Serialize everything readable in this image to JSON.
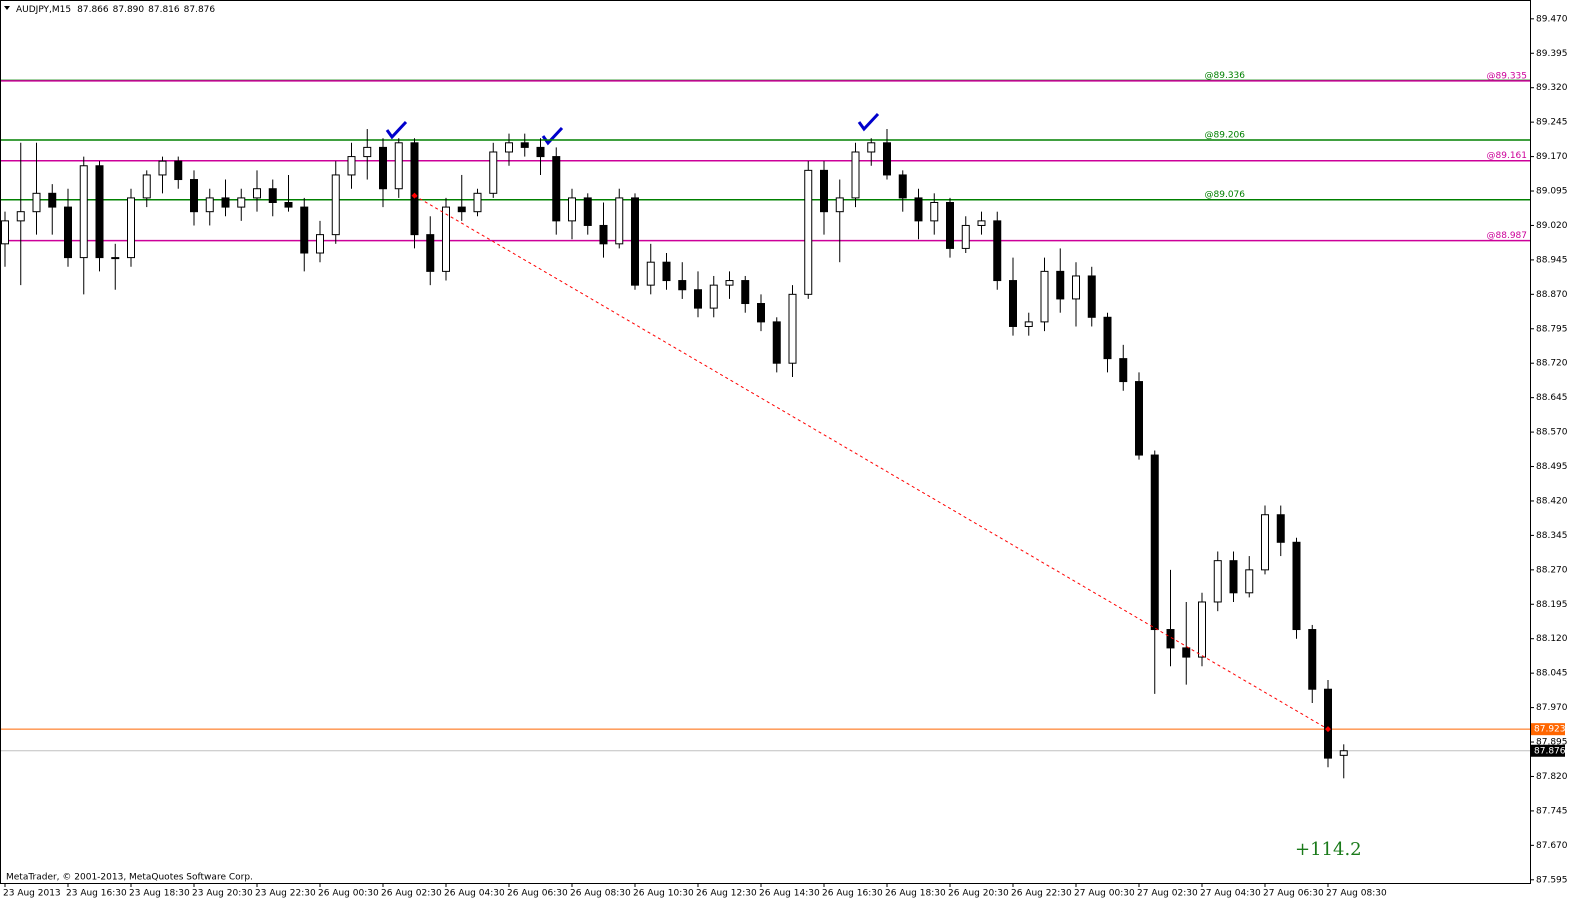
{
  "chart_data": {
    "type": "candlestick",
    "header": {
      "symbol": "AUDJPY,M15",
      "ohlc": [
        "87.866",
        "87.890",
        "87.816",
        "87.876"
      ]
    },
    "footer": "MetaTrader, © 2001-2013, MetaQuotes Software Corp.",
    "annotation": {
      "text": "+114.2",
      "color": "#1a7a1a"
    },
    "categories": [
      "23 Aug 2013",
      null,
      null,
      null,
      "23 Aug 16:30",
      null,
      null,
      null,
      "23 Aug 18:30",
      null,
      null,
      null,
      "23 Aug 20:30",
      null,
      null,
      null,
      "23 Aug 22:30",
      null,
      null,
      null,
      "26 Aug 00:30",
      null,
      null,
      null,
      "26 Aug 02:30",
      null,
      null,
      null,
      "26 Aug 04:30",
      null,
      null,
      null,
      "26 Aug 06:30",
      null,
      null,
      null,
      "26 Aug 08:30",
      null,
      null,
      null,
      "26 Aug 10:30",
      null,
      null,
      null,
      "26 Aug 12:30",
      null,
      null,
      null,
      "26 Aug 14:30",
      null,
      null,
      null,
      "26 Aug 16:30",
      null,
      null,
      null,
      "26 Aug 18:30",
      null,
      null,
      null,
      "26 Aug 20:30",
      null,
      null,
      null,
      "26 Aug 22:30",
      null,
      null,
      null,
      "27 Aug 00:30",
      null,
      null,
      null,
      "27 Aug 02:30",
      null,
      null,
      null,
      "27 Aug 04:30",
      null,
      null,
      null,
      "27 Aug 06:30",
      null,
      null,
      null,
      "27 Aug 08:30",
      null
    ],
    "open": [
      88.98,
      89.03,
      89.05,
      89.09,
      89.06,
      88.95,
      89.15,
      88.95,
      88.95,
      89.08,
      89.13,
      89.16,
      89.12,
      89.05,
      89.08,
      89.06,
      89.08,
      89.1,
      89.07,
      89.06,
      88.96,
      89.0,
      89.13,
      89.17,
      89.19,
      89.1,
      89.2,
      89.0,
      88.92,
      89.06,
      89.05,
      89.09,
      89.18,
      89.2,
      89.19,
      89.17,
      89.03,
      89.08,
      89.02,
      88.98,
      89.08,
      88.89,
      88.94,
      88.9,
      88.88,
      88.84,
      88.89,
      88.9,
      88.85,
      88.81,
      88.72,
      88.87,
      89.14,
      89.05,
      89.08,
      89.18,
      89.2,
      89.13,
      89.08,
      89.03,
      89.07,
      88.97,
      89.02,
      89.03,
      88.9,
      88.8,
      88.81,
      88.92,
      88.86,
      88.91,
      88.82,
      88.73,
      88.68,
      88.52,
      88.14,
      88.1,
      88.08,
      88.2,
      88.29,
      88.22,
      88.27,
      88.39,
      88.33,
      88.14,
      88.01,
      87.866
    ],
    "high": [
      89.05,
      89.2,
      89.2,
      89.11,
      89.1,
      89.17,
      89.16,
      88.98,
      89.1,
      89.14,
      89.17,
      89.17,
      89.14,
      89.1,
      89.12,
      89.1,
      89.14,
      89.12,
      89.13,
      89.08,
      89.03,
      89.16,
      89.2,
      89.23,
      89.21,
      89.21,
      89.21,
      89.04,
      89.08,
      89.13,
      89.1,
      89.2,
      89.22,
      89.22,
      89.21,
      89.19,
      89.1,
      89.09,
      89.07,
      89.1,
      89.09,
      88.98,
      88.96,
      88.94,
      88.92,
      88.91,
      88.92,
      88.91,
      88.87,
      88.82,
      88.89,
      89.16,
      89.16,
      89.12,
      89.2,
      89.21,
      89.23,
      89.14,
      89.1,
      89.09,
      89.08,
      89.04,
      89.05,
      89.05,
      88.95,
      88.83,
      88.95,
      88.97,
      88.94,
      88.93,
      88.83,
      88.76,
      88.7,
      88.53,
      88.27,
      88.2,
      88.22,
      88.31,
      88.31,
      88.3,
      88.41,
      88.41,
      88.34,
      88.15,
      88.03,
      87.89
    ],
    "low": [
      88.93,
      88.89,
      89.0,
      89.0,
      88.93,
      88.87,
      88.92,
      88.88,
      88.93,
      89.06,
      89.09,
      89.1,
      89.02,
      89.02,
      89.04,
      89.03,
      89.05,
      89.04,
      89.05,
      88.92,
      88.94,
      88.98,
      89.1,
      89.12,
      89.06,
      89.08,
      88.97,
      88.89,
      88.9,
      89.03,
      89.04,
      89.08,
      89.15,
      89.17,
      89.13,
      89.0,
      88.99,
      89.0,
      88.95,
      88.97,
      88.88,
      88.87,
      88.88,
      88.86,
      88.82,
      88.82,
      88.86,
      88.83,
      88.79,
      88.7,
      88.69,
      88.86,
      89.0,
      88.94,
      89.06,
      89.15,
      89.12,
      89.05,
      88.99,
      89.0,
      88.95,
      88.96,
      89.0,
      88.88,
      88.78,
      88.78,
      88.79,
      88.83,
      88.8,
      88.8,
      88.7,
      88.66,
      88.51,
      88.0,
      88.06,
      88.02,
      88.06,
      88.18,
      88.2,
      88.21,
      88.26,
      88.3,
      88.12,
      87.98,
      87.84,
      87.816
    ],
    "close": [
      89.03,
      89.05,
      89.09,
      89.06,
      88.95,
      89.15,
      88.95,
      88.95,
      89.08,
      89.13,
      89.16,
      89.12,
      89.05,
      89.08,
      89.06,
      89.08,
      89.1,
      89.07,
      89.06,
      88.96,
      89.0,
      89.13,
      89.17,
      89.19,
      89.1,
      89.2,
      89.0,
      88.92,
      89.06,
      89.05,
      89.09,
      89.18,
      89.2,
      89.19,
      89.17,
      89.03,
      89.08,
      89.02,
      88.98,
      89.08,
      88.89,
      88.94,
      88.9,
      88.88,
      88.84,
      88.89,
      88.9,
      88.85,
      88.81,
      88.72,
      88.87,
      89.14,
      89.05,
      89.08,
      89.18,
      89.2,
      89.13,
      89.08,
      89.03,
      89.07,
      88.97,
      89.02,
      89.03,
      88.9,
      88.8,
      88.81,
      88.92,
      88.86,
      88.91,
      88.82,
      88.73,
      88.68,
      88.52,
      88.14,
      88.1,
      88.08,
      88.2,
      88.29,
      88.22,
      88.27,
      88.39,
      88.33,
      88.14,
      88.01,
      87.86,
      87.876
    ],
    "up_color": "#ffffff",
    "down_color": "#000000",
    "ylim": [
      87.588,
      89.511
    ],
    "yticks": [
      {
        "value": 89.47,
        "label": "89.470"
      },
      89.395,
      {
        "value": 89.32,
        "label": "89.320"
      },
      89.245,
      {
        "value": 89.17,
        "label": "89.170"
      },
      89.095,
      {
        "value": 89.02,
        "label": "89.020"
      },
      88.945,
      {
        "value": 88.87,
        "label": "88.870"
      },
      88.795,
      {
        "value": 88.72,
        "label": "88.720"
      },
      88.645,
      {
        "value": 88.57,
        "label": "88.570"
      },
      88.495,
      {
        "value": 88.42,
        "label": "88.420"
      },
      88.345,
      {
        "value": 88.27,
        "label": "88.270"
      },
      88.195,
      {
        "value": 88.12,
        "label": "88.120"
      },
      88.045,
      {
        "value": 87.97,
        "label": "87.970"
      },
      87.895,
      {
        "value": 87.82,
        "label": "87.820"
      },
      87.745,
      {
        "value": 87.67,
        "label": "87.670"
      },
      87.595
    ],
    "levels": [
      {
        "value": 89.336,
        "label": "@89.336",
        "color": "#008000",
        "label_pos": "middle"
      },
      {
        "value": 89.206,
        "label": "@89.206",
        "color": "#008000",
        "label_pos": "middle"
      },
      {
        "value": 89.076,
        "label": "@89.076",
        "color": "#008000",
        "label_pos": "middle"
      },
      {
        "value": 89.335,
        "label": "@89.335",
        "color": "#cc0099",
        "label_pos": "right"
      },
      {
        "value": 89.161,
        "label": "@89.161",
        "color": "#cc0099",
        "label_pos": "right"
      },
      {
        "value": 88.987,
        "label": "@88.987",
        "color": "#cc0099",
        "label_pos": "right"
      }
    ],
    "alert_line": {
      "value": 87.923,
      "color": "#ff6600"
    },
    "bid_line": {
      "value": 87.876,
      "color": "#c0c0c0"
    },
    "trendline": {
      "from_index": 26,
      "from_value": 89.085,
      "to_index": 84,
      "to_value": 87.923,
      "color": "#ff0000"
    }
  }
}
